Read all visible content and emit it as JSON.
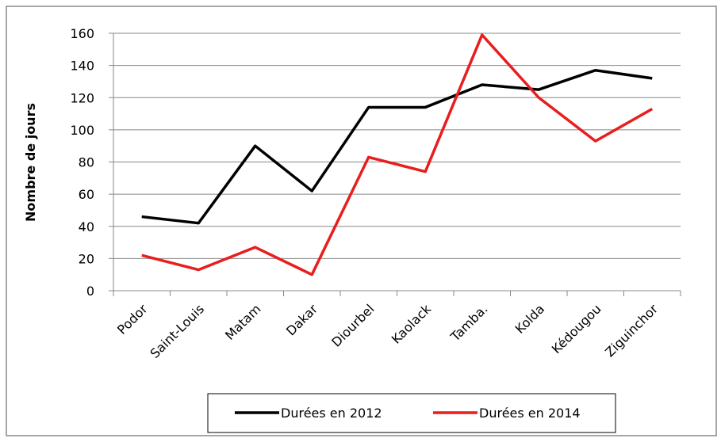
{
  "chart_data": {
    "type": "line",
    "y_label": "Nombre de jours",
    "categories": [
      "Podor",
      "Saint-Louis",
      "Matam",
      "Dakar",
      "Diourbel",
      "Kaolack",
      "Tamba.",
      "Kolda",
      "Kédougou",
      "Ziguinchor"
    ],
    "series": [
      {
        "name": "Durées en 2012",
        "color": "#000000",
        "values": [
          46,
          42,
          90,
          62,
          114,
          114,
          128,
          125,
          137,
          132
        ]
      },
      {
        "name": "Durées en 2014",
        "color": "#e81e1e",
        "values": [
          22,
          13,
          27,
          10,
          83,
          74,
          159,
          120,
          93,
          113
        ]
      }
    ],
    "ylim": [
      0,
      160
    ],
    "yticks": [
      0,
      20,
      40,
      60,
      80,
      100,
      120,
      140,
      160
    ],
    "grid": true,
    "legend": "bottom"
  }
}
